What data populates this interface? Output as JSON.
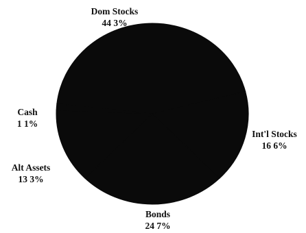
{
  "chart_data": {
    "type": "pie",
    "slices": [
      {
        "name": "Dom  Stocks",
        "value": 44.3,
        "label": "44 3%"
      },
      {
        "name": "Int'l  Stocks",
        "value": 16.6,
        "label": "16 6%"
      },
      {
        "name": "Bonds",
        "value": 24.7,
        "label": "24 7%"
      },
      {
        "name": "Alt  Assets",
        "value": 13.3,
        "label": "13 3%"
      },
      {
        "name": "Cash",
        "value": 1.1,
        "label": "1 1%"
      }
    ],
    "title": "",
    "legend": "none",
    "fill_color": "#0a0a0a"
  }
}
